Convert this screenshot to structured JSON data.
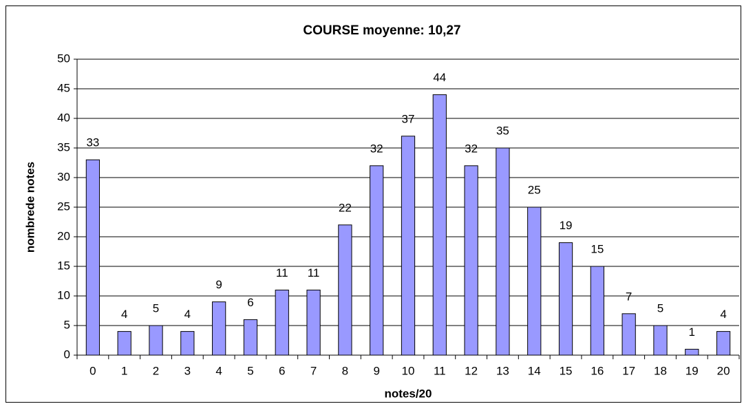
{
  "chart_data": {
    "type": "bar",
    "title": "COURSE moyenne:  10,27",
    "x_label": "notes/20",
    "y_label": "nombrede notes",
    "categories": [
      "0",
      "1",
      "2",
      "3",
      "4",
      "5",
      "6",
      "7",
      "8",
      "9",
      "10",
      "11",
      "12",
      "13",
      "14",
      "15",
      "16",
      "17",
      "18",
      "19",
      "20"
    ],
    "values": [
      33,
      4,
      5,
      4,
      9,
      6,
      11,
      11,
      22,
      32,
      37,
      44,
      32,
      35,
      25,
      19,
      15,
      7,
      5,
      1,
      4
    ],
    "color": "#9999ff",
    "ylim": [
      0,
      50
    ],
    "yticks": [
      0,
      5,
      10,
      15,
      20,
      25,
      30,
      35,
      40,
      45,
      50
    ],
    "grid": true
  }
}
